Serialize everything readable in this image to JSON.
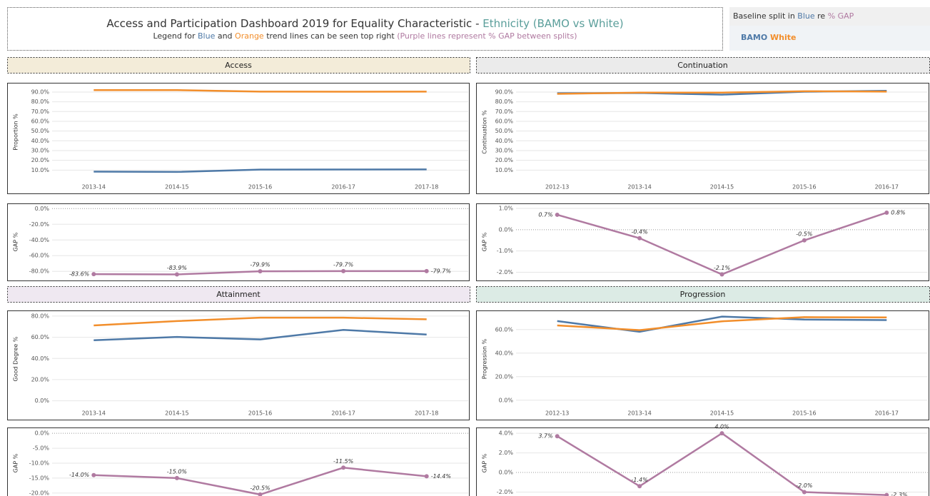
{
  "header": {
    "title": "Access and Participation Dashboard 2019 for Equality Characteristic - ",
    "title_highlight": "Ethnicity (BAMO vs White)",
    "subtitle": [
      "Legend for ",
      "Blue",
      " and ",
      "Orange",
      " trend lines can be seen top right ",
      "(Purple lines represent % GAP between splits)"
    ],
    "legend_title": [
      "Baseline split in ",
      "Blue",
      " re ",
      "% GAP"
    ],
    "legend_items": [
      "BAMO",
      "White"
    ]
  },
  "sections": [
    {
      "name": "Access",
      "color": "#f3ecd9"
    },
    {
      "name": "Continuation",
      "color": "#ebebeb"
    },
    {
      "name": "Attainment",
      "color": "#efe8f1"
    },
    {
      "name": "Progression",
      "color": "#dcebe5"
    }
  ],
  "chart_data": [
    {
      "type": "line",
      "y_label": "Proportion %",
      "grid": true,
      "categories": [
        "2013-14",
        "2014-15",
        "2015-16",
        "2016-17",
        "2017-18"
      ],
      "series": [
        {
          "name": "BAMO",
          "color": "#4e79a7",
          "values": [
            8.4,
            8.1,
            10.5,
            10.6,
            10.7
          ]
        },
        {
          "name": "White",
          "color": "#f28e2b",
          "values": [
            92.0,
            92.0,
            90.4,
            90.3,
            90.4
          ]
        }
      ],
      "ylim": [
        0,
        98
      ],
      "yticks": [
        {
          "value": 10,
          "label": "10.0%"
        },
        {
          "value": 20,
          "label": "20.0%"
        },
        {
          "value": 30,
          "label": "30.0%"
        },
        {
          "value": 40,
          "label": "40.0%"
        },
        {
          "value": 50,
          "label": "50.0%"
        },
        {
          "value": 60,
          "label": "60.0%"
        },
        {
          "value": 70,
          "label": "70.0%"
        },
        {
          "value": 80,
          "label": "80.0%"
        },
        {
          "value": 90,
          "label": "90.0%"
        }
      ]
    },
    {
      "type": "gap",
      "y_label": "GAP %",
      "grid": true,
      "series": [
        {
          "name": "% GAP",
          "color": "#b07aa1",
          "values": [
            -83.6,
            -83.9,
            -79.9,
            -79.7,
            -79.7
          ],
          "value_labels": [
            "-83.6%",
            "-83.9%",
            "-79.9%",
            "-79.7%",
            "-79.7%"
          ]
        }
      ],
      "ylim": [
        -88,
        3
      ],
      "yticks": [
        {
          "value": 0,
          "label": "0.0%"
        },
        {
          "value": -20,
          "label": "-20.0%"
        },
        {
          "value": -40,
          "label": "-40.0%"
        },
        {
          "value": -60,
          "label": "-60.0%"
        },
        {
          "value": -80,
          "label": "-80.0%"
        }
      ]
    },
    {
      "type": "line",
      "y_label": "Continuation %",
      "grid": true,
      "categories": [
        "2012-13",
        "2013-14",
        "2014-15",
        "2015-16",
        "2016-17"
      ],
      "series": [
        {
          "name": "BAMO",
          "color": "#4e79a7",
          "values": [
            88.8,
            89.0,
            87.3,
            90.3,
            91.2
          ]
        },
        {
          "name": "White",
          "color": "#f28e2b",
          "values": [
            88.1,
            89.4,
            89.4,
            90.8,
            90.4
          ]
        }
      ],
      "ylim": [
        0,
        98
      ],
      "yticks": [
        {
          "value": 10,
          "label": "10.0%"
        },
        {
          "value": 20,
          "label": "20.0%"
        },
        {
          "value": 30,
          "label": "30.0%"
        },
        {
          "value": 40,
          "label": "40.0%"
        },
        {
          "value": 50,
          "label": "50.0%"
        },
        {
          "value": 60,
          "label": "60.0%"
        },
        {
          "value": 70,
          "label": "70.0%"
        },
        {
          "value": 80,
          "label": "80.0%"
        },
        {
          "value": 90,
          "label": "90.0%"
        }
      ]
    },
    {
      "type": "gap",
      "y_label": "GAP %",
      "grid": true,
      "series": [
        {
          "name": "% GAP",
          "color": "#b07aa1",
          "values": [
            0.7,
            -0.4,
            -2.1,
            -0.5,
            0.8
          ],
          "value_labels": [
            "0.7%",
            "-0.4%",
            "-2.1%",
            "-0.5%",
            "0.8%"
          ]
        }
      ],
      "ylim": [
        -2.25,
        1.1
      ],
      "yticks": [
        {
          "value": 1,
          "label": "1.0%"
        },
        {
          "value": 0,
          "label": "0.0%"
        },
        {
          "value": -1,
          "label": "-1.0%"
        },
        {
          "value": -2,
          "label": "-2.0%"
        }
      ]
    },
    {
      "type": "line",
      "y_label": "Good Degree %",
      "grid": true,
      "categories": [
        "2013-14",
        "2014-15",
        "2015-16",
        "2016-17",
        "2017-18"
      ],
      "series": [
        {
          "name": "BAMO",
          "color": "#4e79a7",
          "values": [
            57.2,
            60.3,
            58.0,
            67.0,
            62.6
          ]
        },
        {
          "name": "White",
          "color": "#f28e2b",
          "values": [
            71.2,
            75.3,
            78.5,
            78.5,
            77.0
          ]
        }
      ],
      "ylim": [
        -5,
        84
      ],
      "yticks": [
        {
          "value": 0,
          "label": "0.0%"
        },
        {
          "value": 20,
          "label": "20.0%"
        },
        {
          "value": 40,
          "label": "40.0%"
        },
        {
          "value": 60,
          "label": "60.0%"
        },
        {
          "value": 80,
          "label": "80.0%"
        }
      ]
    },
    {
      "type": "gap",
      "y_label": "GAP %",
      "grid": true,
      "series": [
        {
          "name": "% GAP",
          "color": "#b07aa1",
          "values": [
            -14.0,
            -15.0,
            -20.5,
            -11.5,
            -14.4
          ],
          "value_labels": [
            "-14.0%",
            "-15.0%",
            "-20.5%",
            "-11.5%",
            "-14.4%"
          ]
        }
      ],
      "ylim": [
        -21,
        1
      ],
      "yticks": [
        {
          "value": 0,
          "label": "0.0%"
        },
        {
          "value": -5,
          "label": "-5.0%"
        },
        {
          "value": -10,
          "label": "-10.0%"
        },
        {
          "value": -15,
          "label": "-15.0%"
        },
        {
          "value": -20,
          "label": "-20.0%"
        }
      ]
    },
    {
      "type": "line",
      "y_label": "Progression %",
      "grid": true,
      "categories": [
        "2012-13",
        "2013-14",
        "2014-15",
        "2015-16",
        "2016-17"
      ],
      "series": [
        {
          "name": "BAMO",
          "color": "#4e79a7",
          "values": [
            67.2,
            58.1,
            71.0,
            68.5,
            68.0
          ]
        },
        {
          "name": "White",
          "color": "#f28e2b",
          "values": [
            63.5,
            59.5,
            67.0,
            70.5,
            70.3
          ]
        }
      ],
      "ylim": [
        -5,
        75
      ],
      "yticks": [
        {
          "value": 0,
          "label": "0.0%"
        },
        {
          "value": 20,
          "label": "20.0%"
        },
        {
          "value": 40,
          "label": "40.0%"
        },
        {
          "value": 60,
          "label": "60.0%"
        }
      ]
    },
    {
      "type": "gap",
      "y_label": "GAP %",
      "grid": true,
      "series": [
        {
          "name": "% GAP",
          "color": "#b07aa1",
          "values": [
            3.7,
            -1.4,
            4.0,
            -2.0,
            -2.3
          ],
          "value_labels": [
            "3.7%",
            "-1.4%",
            "4.0%",
            "-2.0%",
            "-2.3%"
          ]
        }
      ],
      "ylim": [
        -2.4,
        4.3
      ],
      "yticks": [
        {
          "value": 4,
          "label": "4.0%"
        },
        {
          "value": 2,
          "label": "2.0%"
        },
        {
          "value": 0,
          "label": "0.0%"
        },
        {
          "value": -2,
          "label": "-2.0%"
        }
      ]
    }
  ]
}
